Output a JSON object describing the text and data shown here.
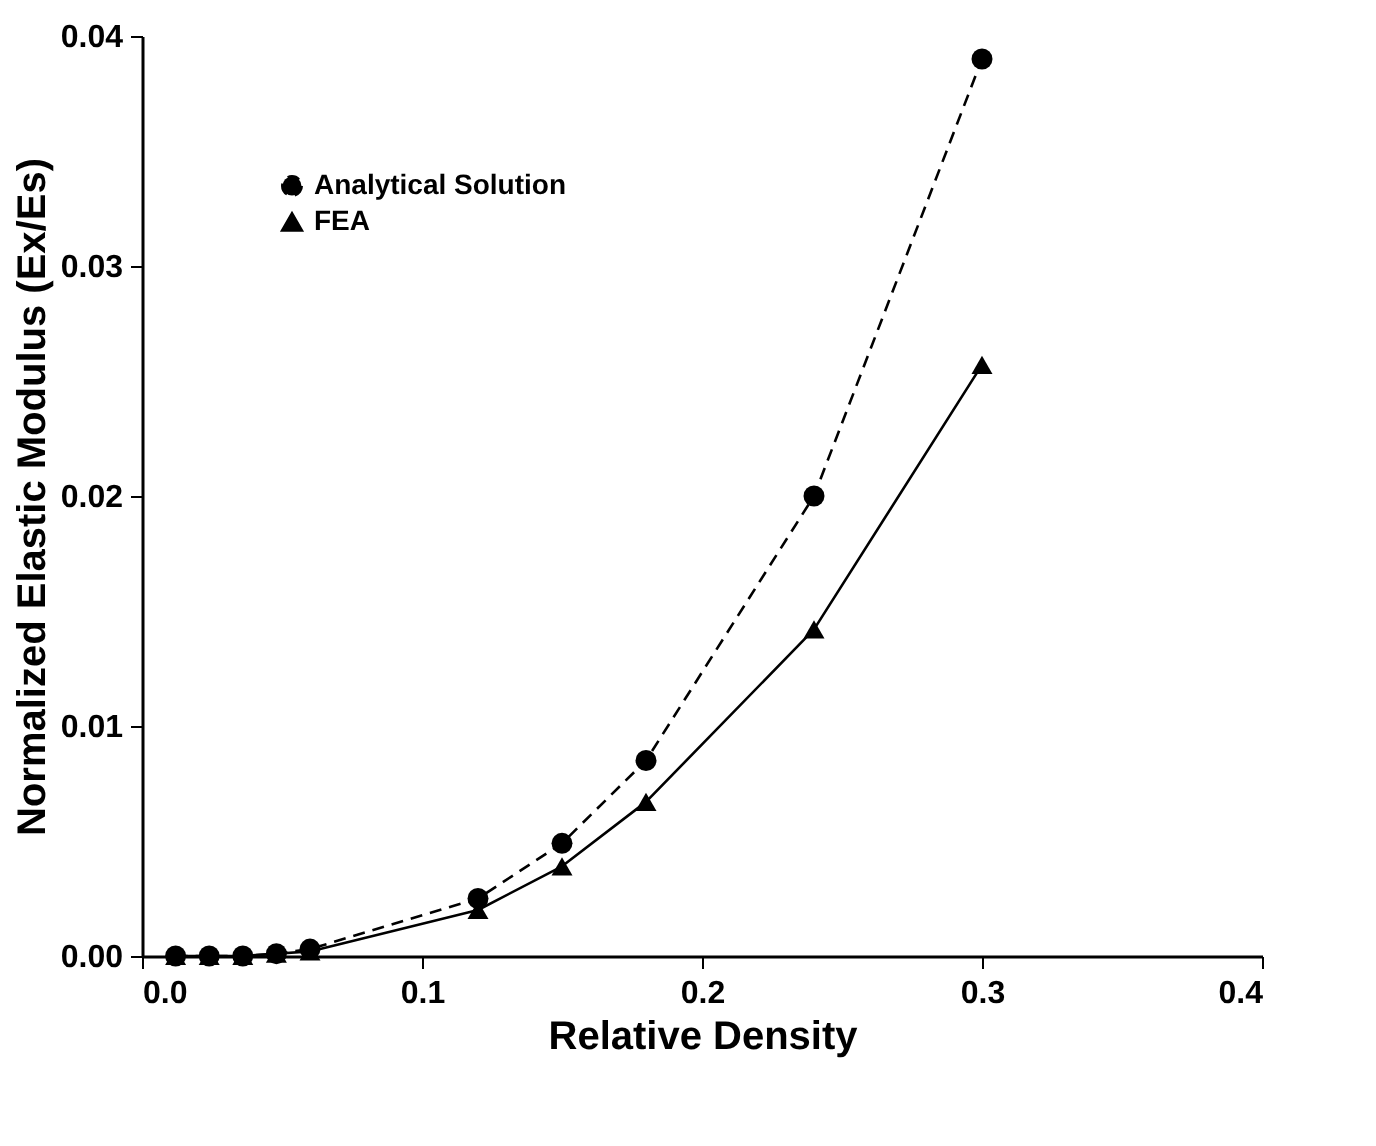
{
  "chart_data": {
    "type": "line",
    "xlabel": "Relative Density",
    "ylabel": "Normalized Elastic Modulus (Ex/Es)",
    "xlim": [
      0,
      0.4
    ],
    "ylim": [
      0,
      0.04
    ],
    "xticks": [
      {
        "value": 0,
        "label": "0.0"
      },
      {
        "value": 0.1,
        "label": "0.1"
      },
      {
        "value": 0.2,
        "label": "0.2"
      },
      {
        "value": 0.3,
        "label": "0.3"
      },
      {
        "value": 0.4,
        "label": "0.4"
      }
    ],
    "yticks": [
      {
        "value": 0,
        "label": "0.00"
      },
      {
        "value": 0.01,
        "label": "0.01"
      },
      {
        "value": 0.02,
        "label": "0.02"
      },
      {
        "value": 0.03,
        "label": "0.03"
      },
      {
        "value": 0.04,
        "label": "0.04"
      }
    ],
    "grid": false,
    "legend": "top left",
    "series": [
      {
        "name": "Analytical Solution",
        "color": "#000000",
        "marker": "circle",
        "line_style": "dashed",
        "x": [
          0.012,
          0.024,
          0.036,
          0.048,
          0.06,
          0.12,
          0.15,
          0.18,
          0.24,
          0.3
        ],
        "values": [
          0.0,
          0.0,
          0.0,
          0.0001,
          0.0003,
          0.0025,
          0.0049,
          0.0085,
          0.02,
          0.039
        ]
      },
      {
        "name": "FEA",
        "color": "#000000",
        "marker": "triangle",
        "line_style": "solid",
        "x": [
          0.012,
          0.024,
          0.036,
          0.048,
          0.06,
          0.12,
          0.15,
          0.18,
          0.24,
          0.3
        ],
        "values": [
          0.0,
          0.0,
          0.0,
          0.0001,
          0.0002,
          0.002,
          0.0039,
          0.0067,
          0.0142,
          0.0257
        ]
      }
    ]
  }
}
